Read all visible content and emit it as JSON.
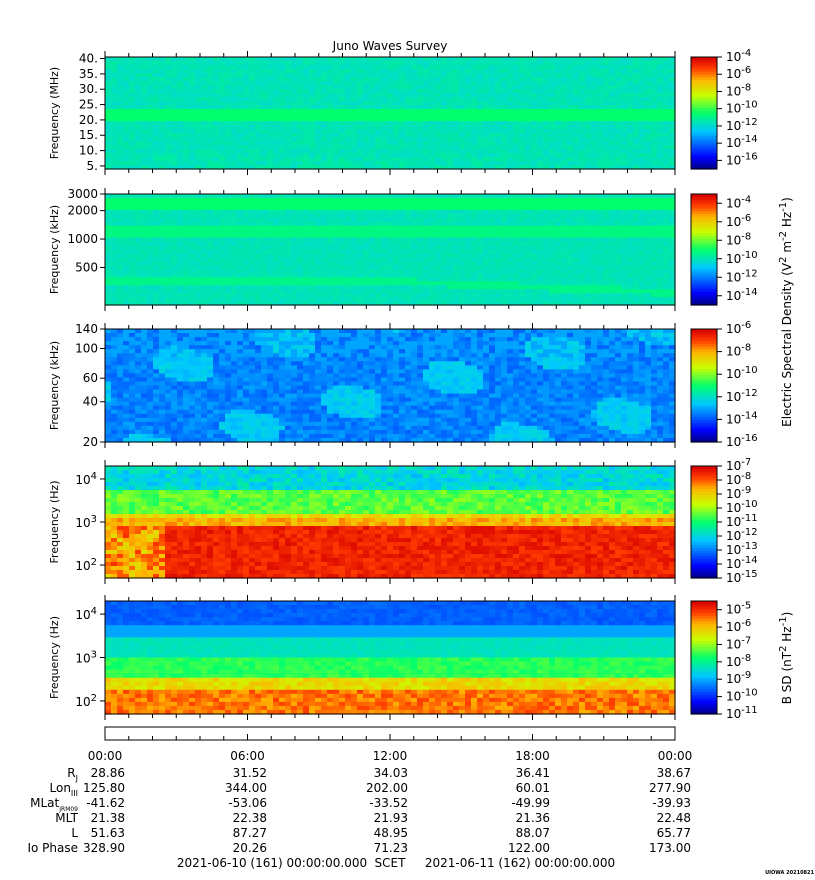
{
  "chart_data": {
    "type": "heatmap",
    "title": "Juno Waves Survey",
    "panels": [
      {
        "ylabel": "Frequency (MHz)",
        "scale": "linear",
        "ylim": [
          4,
          40.5
        ],
        "yticks": [
          {
            "v": 5,
            "label": "5."
          },
          {
            "v": 10,
            "label": "10."
          },
          {
            "v": 15,
            "label": "15."
          },
          {
            "v": 20,
            "label": "20."
          },
          {
            "v": 25,
            "label": "25."
          },
          {
            "v": 30,
            "label": "30."
          },
          {
            "v": 35,
            "label": "35."
          },
          {
            "v": 40,
            "label": "40."
          }
        ],
        "colorbar": {
          "range_exp": [
            -17,
            -4
          ],
          "labels": [
            {
              "base": "10",
              "exp": "-4"
            },
            {
              "base": "10",
              "exp": "-6"
            },
            {
              "base": "10",
              "exp": "-8"
            },
            {
              "base": "10",
              "exp": "-10"
            },
            {
              "base": "10",
              "exp": "-12"
            },
            {
              "base": "10",
              "exp": "-14"
            },
            {
              "base": "10",
              "exp": "-16"
            }
          ],
          "label_exps": [
            -4,
            -6,
            -8,
            -10,
            -12,
            -14,
            -16
          ]
        }
      },
      {
        "ylabel": "Frequency (kHz)",
        "scale": "log",
        "ylim": [
          200,
          3000
        ],
        "yticks": [
          {
            "v": 500,
            "label": "500"
          },
          {
            "v": 1000,
            "label": "1000"
          },
          {
            "v": 2000,
            "label": "2000"
          },
          {
            "v": 3000,
            "label": "3000"
          }
        ],
        "colorbar": {
          "range_exp": [
            -15,
            -3
          ],
          "labels": [
            {
              "base": "10",
              "exp": "-4"
            },
            {
              "base": "10",
              "exp": "-6"
            },
            {
              "base": "10",
              "exp": "-8"
            },
            {
              "base": "10",
              "exp": "-10"
            },
            {
              "base": "10",
              "exp": "-12"
            },
            {
              "base": "10",
              "exp": "-14"
            }
          ],
          "label_exps": [
            -4,
            -6,
            -8,
            -10,
            -12,
            -14
          ]
        }
      },
      {
        "ylabel": "Frequency (kHz)",
        "scale": "log",
        "ylim": [
          20,
          140
        ],
        "yticks": [
          {
            "v": 20,
            "label": "20"
          },
          {
            "v": 40,
            "label": "40"
          },
          {
            "v": 60,
            "label": "60"
          },
          {
            "v": 100,
            "label": "100"
          },
          {
            "v": 140,
            "label": "140"
          }
        ],
        "colorbar": {
          "range_exp": [
            -16,
            -6
          ],
          "labels": [
            {
              "base": "10",
              "exp": "-6"
            },
            {
              "base": "10",
              "exp": "-8"
            },
            {
              "base": "10",
              "exp": "-10"
            },
            {
              "base": "10",
              "exp": "-12"
            },
            {
              "base": "10",
              "exp": "-14"
            },
            {
              "base": "10",
              "exp": "-16"
            }
          ],
          "label_exps": [
            -6,
            -8,
            -10,
            -12,
            -14,
            -16
          ]
        }
      },
      {
        "ylabel": "Frequency (Hz)",
        "scale": "log",
        "ylim": [
          50,
          20000
        ],
        "yticks": [
          {
            "v": 100,
            "label": "10",
            "exp": "2"
          },
          {
            "v": 1000,
            "label": "10",
            "exp": "3"
          },
          {
            "v": 10000,
            "label": "10",
            "exp": "4"
          }
        ],
        "colorbar": {
          "range_exp": [
            -15,
            -7
          ],
          "labels": [
            {
              "base": "10",
              "exp": "-7"
            },
            {
              "base": "10",
              "exp": "-8"
            },
            {
              "base": "10",
              "exp": "-9"
            },
            {
              "base": "10",
              "exp": "-10"
            },
            {
              "base": "10",
              "exp": "-11"
            },
            {
              "base": "10",
              "exp": "-12"
            },
            {
              "base": "10",
              "exp": "-13"
            },
            {
              "base": "10",
              "exp": "-14"
            },
            {
              "base": "10",
              "exp": "-15"
            }
          ],
          "label_exps": [
            -7,
            -8,
            -9,
            -10,
            -11,
            -12,
            -13,
            -14,
            -15
          ]
        }
      },
      {
        "ylabel": "Frequency (Hz)",
        "scale": "log",
        "ylim": [
          50,
          20000
        ],
        "yticks": [
          {
            "v": 100,
            "label": "10",
            "exp": "2"
          },
          {
            "v": 1000,
            "label": "10",
            "exp": "3"
          },
          {
            "v": 10000,
            "label": "10",
            "exp": "4"
          }
        ],
        "colorbar": {
          "range_exp": [
            -11,
            -4.5
          ],
          "labels": [
            {
              "base": "10",
              "exp": "-5"
            },
            {
              "base": "10",
              "exp": "-6"
            },
            {
              "base": "10",
              "exp": "-7"
            },
            {
              "base": "10",
              "exp": "-8"
            },
            {
              "base": "10",
              "exp": "-9"
            },
            {
              "base": "10",
              "exp": "-10"
            },
            {
              "base": "10",
              "exp": "-11"
            }
          ],
          "label_exps": [
            -5,
            -6,
            -7,
            -8,
            -9,
            -10,
            -11
          ]
        }
      }
    ],
    "colorbar_label_e": {
      "prefix": "Electric Spectral Density (V",
      "sup1": "2",
      "mid": " m",
      "sup2": "-2",
      "mid2": " Hz",
      "sup3": "-1",
      "suffix": ")"
    },
    "colorbar_label_b": {
      "prefix": "B SD (nT",
      "sup1": "2",
      "mid": " Hz",
      "sup2": "-1",
      "suffix": ")"
    },
    "time_labels": [
      "00:00",
      "06:00",
      "12:00",
      "18:00",
      "00:00"
    ],
    "ephemeris": [
      {
        "label": "R",
        "sub": "J",
        "values": [
          "28.86",
          "31.52",
          "34.03",
          "36.41",
          "38.67"
        ]
      },
      {
        "label": "Lon",
        "sub": "III",
        "values": [
          "125.80",
          "344.00",
          "202.00",
          "60.01",
          "277.90"
        ]
      },
      {
        "label": "MLat",
        "sub": "JRM09",
        "values": [
          "-41.62",
          "-53.06",
          "-33.52",
          "-49.99",
          "-39.93"
        ]
      },
      {
        "label": "MLT",
        "sub": "",
        "values": [
          "21.38",
          "22.38",
          "21.93",
          "21.36",
          "22.48"
        ]
      },
      {
        "label": "L",
        "sub": "",
        "values": [
          "51.63",
          "87.27",
          "48.95",
          "88.07",
          "65.77"
        ]
      },
      {
        "label": "Io Phase",
        "sub": "",
        "values": [
          "328.90",
          "20.26",
          "71.23",
          "122.00",
          "173.00"
        ]
      }
    ],
    "footer": {
      "start": "2021-06-10 (161) 00:00:00.000",
      "mid": "SCET",
      "end": "2021-06-11 (162) 00:00:00.000"
    },
    "credit": "UIOWA 20210821"
  }
}
